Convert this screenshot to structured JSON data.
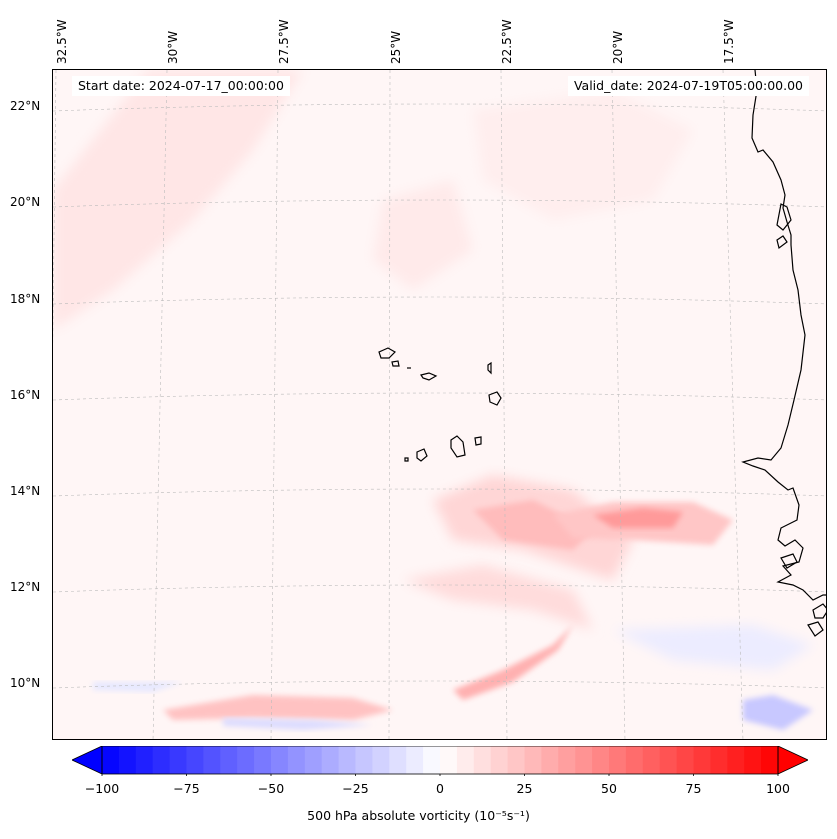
{
  "header": {
    "start_date": "Start date: 2024-07-17_00:00:00",
    "valid_date": "Valid_date: 2024-07-19T05:00:00.00"
  },
  "axes": {
    "lon_labels": [
      "32.5°W",
      "30°W",
      "27.5°W",
      "25°W",
      "22.5°W",
      "20°W",
      "17.5°W"
    ],
    "lat_labels": [
      "22°N",
      "20°N",
      "18°N",
      "16°N",
      "14°N",
      "12°N",
      "10°N"
    ]
  },
  "colorbar": {
    "ticks": [
      "−100",
      "−75",
      "−50",
      "−25",
      "0",
      "25",
      "50",
      "75",
      "100"
    ],
    "label": "500 hPa absolute vorticity (10⁻⁵s⁻¹)",
    "min": -100,
    "max": 100,
    "negative_color": "#0000ff",
    "positive_color": "#ff0000"
  },
  "map": {
    "field": "500 hPa absolute vorticity",
    "coast_color": "#000000",
    "grid_color": "#bbbbbb"
  }
}
